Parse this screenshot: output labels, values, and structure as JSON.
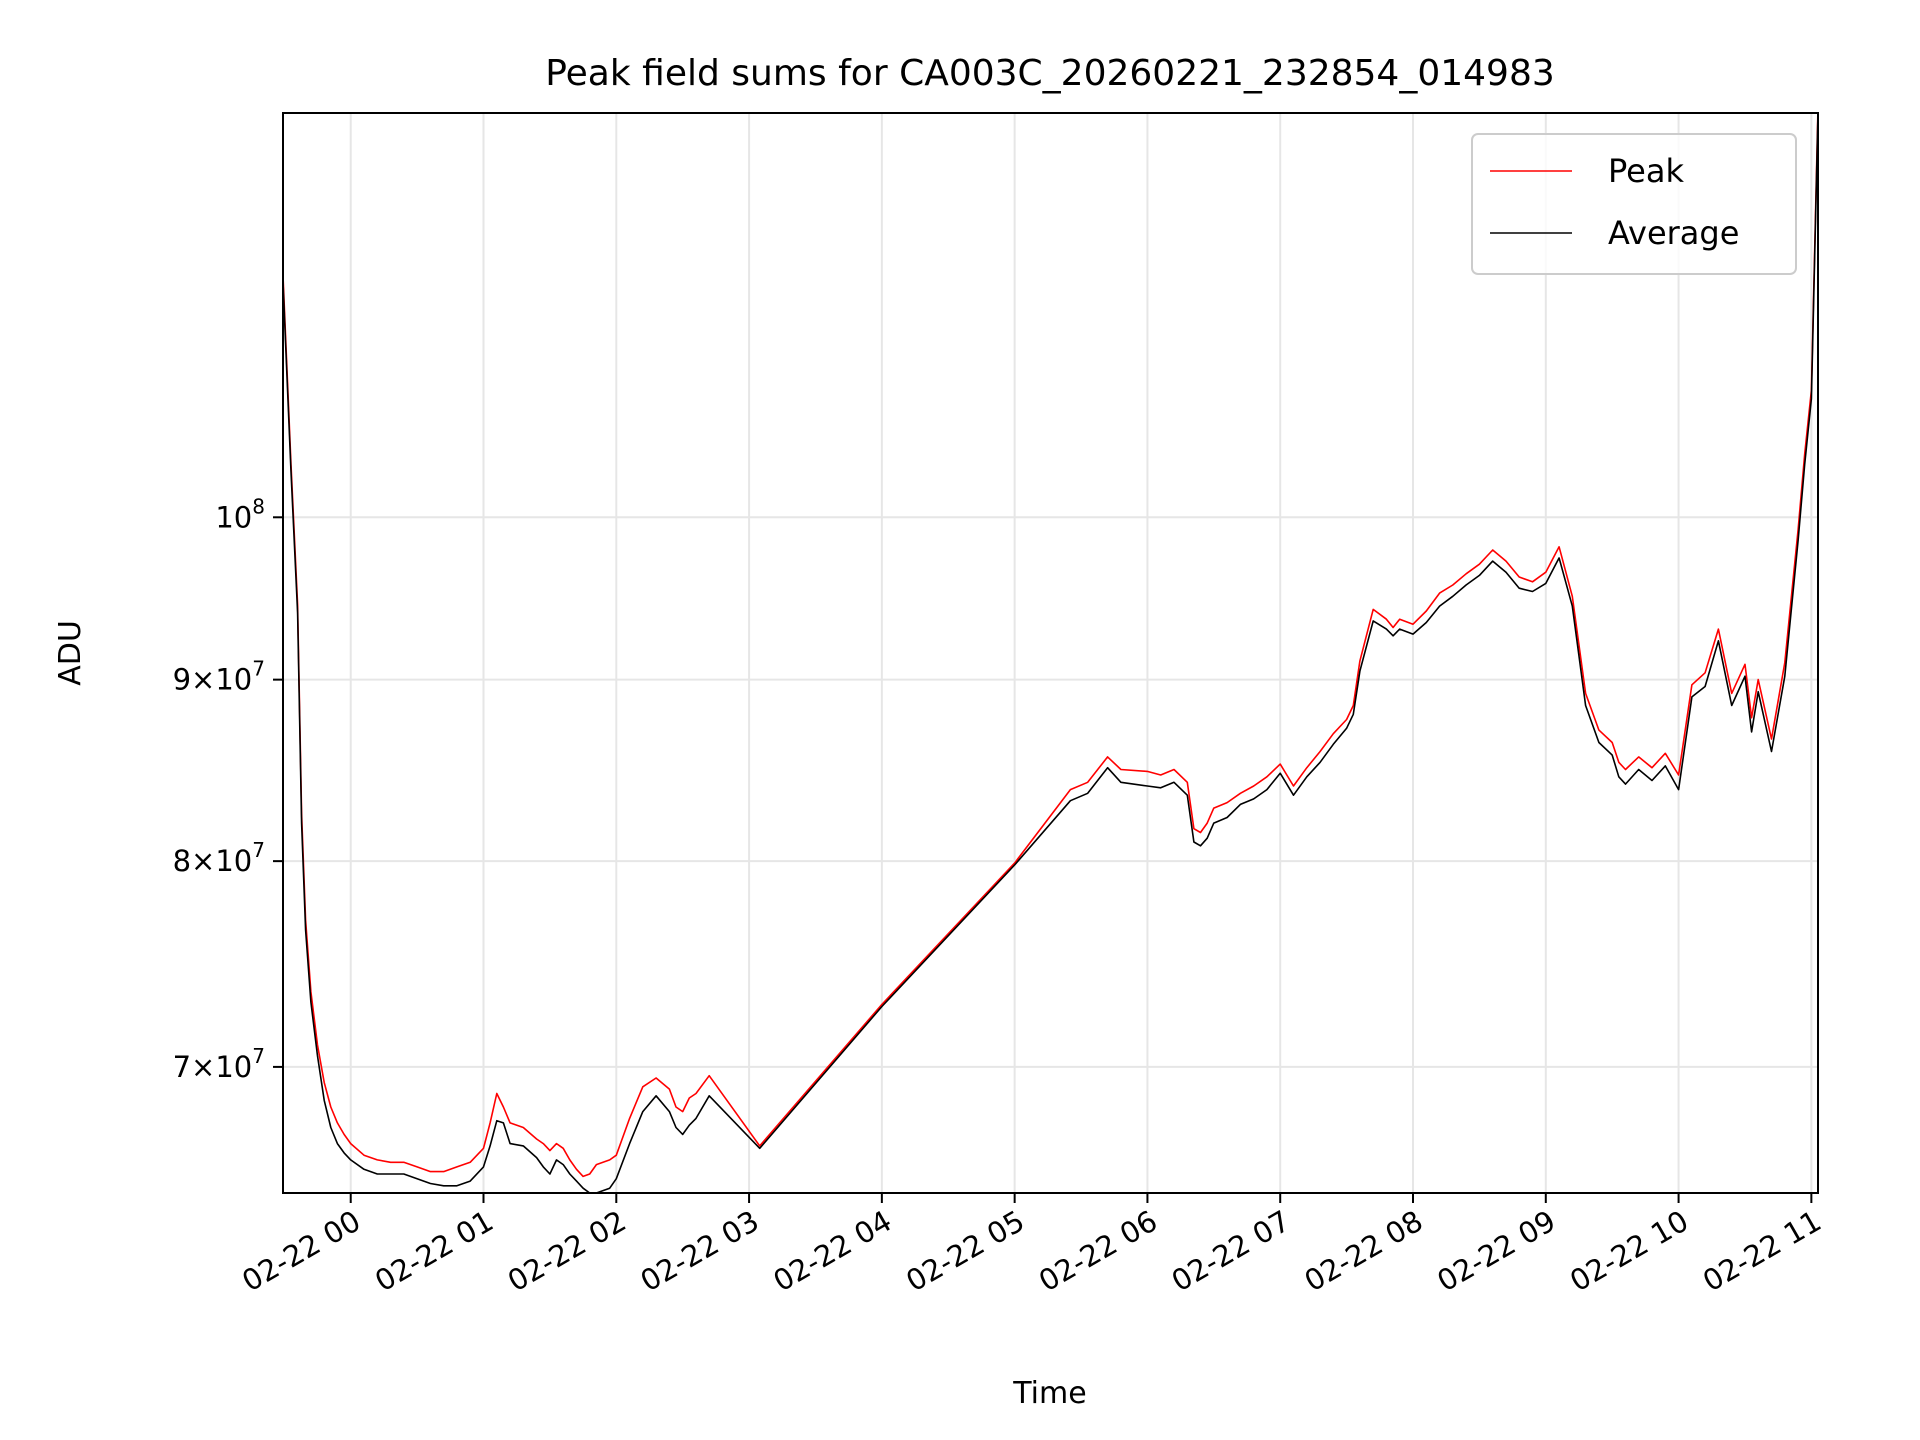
{
  "chart_data": {
    "type": "line",
    "title": "Peak field sums for CA003C_20260221_232854_014983",
    "xlabel": "Time",
    "ylabel": "ADU",
    "x_is_time": true,
    "x_unit": "hours since 2026-02-22 00:00",
    "xlim": [
      -0.51,
      11.05
    ],
    "yscale": "log",
    "ylim": [
      64500000,
      130000000
    ],
    "grid": true,
    "legend_position": "top-right",
    "x_ticks": [
      {
        "value": 0,
        "label": "02-22 00"
      },
      {
        "value": 1,
        "label": "02-22 01"
      },
      {
        "value": 2,
        "label": "02-22 02"
      },
      {
        "value": 3,
        "label": "02-22 03"
      },
      {
        "value": 4,
        "label": "02-22 04"
      },
      {
        "value": 5,
        "label": "02-22 05"
      },
      {
        "value": 6,
        "label": "02-22 06"
      },
      {
        "value": 7,
        "label": "02-22 07"
      },
      {
        "value": 8,
        "label": "02-22 08"
      },
      {
        "value": 9,
        "label": "02-22 09"
      },
      {
        "value": 10,
        "label": "02-22 10"
      },
      {
        "value": 11,
        "label": "02-22 11"
      }
    ],
    "y_ticks": [
      {
        "value": 70000000,
        "mantissa": "7",
        "base": "10",
        "exp": "7"
      },
      {
        "value": 80000000,
        "mantissa": "8",
        "base": "10",
        "exp": "7"
      },
      {
        "value": 90000000,
        "mantissa": "9",
        "base": "10",
        "exp": "7"
      },
      {
        "value": 100000000,
        "mantissa": "",
        "base": "10",
        "exp": "8"
      }
    ],
    "series": [
      {
        "name": "Average",
        "color": "#000000",
        "x": [
          -0.51,
          -0.45,
          -0.4,
          -0.37,
          -0.34,
          -0.3,
          -0.25,
          -0.2,
          -0.15,
          -0.1,
          -0.05,
          0.0,
          0.1,
          0.2,
          0.3,
          0.4,
          0.5,
          0.6,
          0.7,
          0.8,
          0.9,
          1.0,
          1.05,
          1.1,
          1.15,
          1.2,
          1.3,
          1.4,
          1.45,
          1.5,
          1.55,
          1.6,
          1.65,
          1.7,
          1.75,
          1.8,
          1.85,
          1.9,
          1.95,
          2.0,
          2.1,
          2.2,
          2.3,
          2.4,
          2.45,
          2.5,
          2.55,
          2.6,
          2.7,
          3.08,
          4.0,
          5.0,
          5.42,
          5.55,
          5.7,
          5.8,
          6.0,
          6.1,
          6.2,
          6.3,
          6.35,
          6.4,
          6.45,
          6.5,
          6.6,
          6.7,
          6.8,
          6.9,
          7.0,
          7.1,
          7.2,
          7.3,
          7.4,
          7.5,
          7.55,
          7.6,
          7.7,
          7.8,
          7.85,
          7.9,
          8.0,
          8.1,
          8.2,
          8.3,
          8.4,
          8.5,
          8.6,
          8.7,
          8.8,
          8.9,
          9.0,
          9.1,
          9.2,
          9.3,
          9.4,
          9.5,
          9.55,
          9.6,
          9.7,
          9.8,
          9.9,
          10.0,
          10.1,
          10.2,
          10.3,
          10.4,
          10.5,
          10.55,
          10.6,
          10.7,
          10.8,
          10.9,
          10.95,
          11.0,
          11.05
        ],
        "values": [
          116500000,
          103000000,
          94000000,
          82000000,
          76500000,
          73000000,
          70500000,
          68500000,
          67300000,
          66600000,
          66200000,
          65900000,
          65500000,
          65300000,
          65300000,
          65300000,
          65100000,
          64900000,
          64800000,
          64800000,
          65000000,
          65600000,
          66500000,
          67600000,
          67500000,
          66600000,
          66500000,
          66000000,
          65600000,
          65300000,
          65900000,
          65700000,
          65300000,
          65000000,
          64700000,
          64500000,
          64500000,
          64600000,
          64700000,
          65100000,
          66600000,
          68000000,
          68700000,
          68000000,
          67300000,
          67000000,
          67400000,
          67700000,
          68700000,
          66400000,
          72800000,
          79800000,
          83200000,
          83600000,
          85000000,
          84200000,
          84000000,
          83900000,
          84200000,
          83500000,
          81000000,
          80800000,
          81200000,
          82000000,
          82300000,
          83000000,
          83300000,
          83800000,
          84700000,
          83500000,
          84500000,
          85300000,
          86300000,
          87200000,
          88000000,
          90500000,
          93500000,
          93000000,
          92600000,
          93000000,
          92700000,
          93400000,
          94400000,
          95000000,
          95700000,
          96300000,
          97200000,
          96500000,
          95500000,
          95300000,
          95800000,
          97400000,
          94400000,
          88500000,
          86400000,
          85700000,
          84500000,
          84100000,
          84900000,
          84300000,
          85100000,
          83800000,
          89000000,
          89600000,
          92300000,
          88500000,
          90200000,
          87000000,
          89300000,
          85900000,
          90200000,
          98500000,
          103500000,
          108000000,
          130000000
        ]
      },
      {
        "name": "Peak",
        "color": "#ff0000",
        "x": [
          -0.51,
          -0.45,
          -0.4,
          -0.37,
          -0.34,
          -0.3,
          -0.25,
          -0.2,
          -0.15,
          -0.1,
          -0.05,
          0.0,
          0.1,
          0.2,
          0.3,
          0.4,
          0.5,
          0.6,
          0.7,
          0.8,
          0.9,
          1.0,
          1.05,
          1.1,
          1.15,
          1.2,
          1.3,
          1.4,
          1.45,
          1.5,
          1.55,
          1.6,
          1.65,
          1.7,
          1.75,
          1.8,
          1.85,
          1.9,
          1.95,
          2.0,
          2.1,
          2.2,
          2.3,
          2.4,
          2.45,
          2.5,
          2.55,
          2.6,
          2.7,
          3.08,
          4.0,
          5.0,
          5.42,
          5.55,
          5.7,
          5.8,
          6.0,
          6.1,
          6.2,
          6.3,
          6.35,
          6.4,
          6.45,
          6.5,
          6.6,
          6.7,
          6.8,
          6.9,
          7.0,
          7.1,
          7.2,
          7.3,
          7.4,
          7.5,
          7.55,
          7.6,
          7.7,
          7.8,
          7.85,
          7.9,
          8.0,
          8.1,
          8.2,
          8.3,
          8.4,
          8.5,
          8.6,
          8.7,
          8.8,
          8.9,
          9.0,
          9.1,
          9.2,
          9.3,
          9.4,
          9.5,
          9.55,
          9.6,
          9.7,
          9.8,
          9.9,
          10.0,
          10.1,
          10.2,
          10.3,
          10.4,
          10.5,
          10.55,
          10.6,
          10.7,
          10.8,
          10.9,
          10.95,
          11.0,
          11.05
        ],
        "values": [
          117000000,
          103500000,
          94500000,
          82500000,
          77000000,
          73500000,
          71000000,
          69300000,
          68200000,
          67500000,
          67000000,
          66600000,
          66100000,
          65900000,
          65800000,
          65800000,
          65600000,
          65400000,
          65400000,
          65600000,
          65800000,
          66400000,
          67500000,
          68800000,
          68200000,
          67500000,
          67300000,
          66800000,
          66600000,
          66300000,
          66600000,
          66400000,
          65900000,
          65500000,
          65200000,
          65300000,
          65700000,
          65800000,
          65900000,
          66100000,
          67700000,
          69100000,
          69500000,
          69000000,
          68200000,
          68000000,
          68600000,
          68800000,
          69600000,
          66500000,
          72900000,
          79900000,
          83800000,
          84200000,
          85600000,
          84900000,
          84800000,
          84600000,
          84900000,
          84200000,
          81700000,
          81500000,
          82000000,
          82800000,
          83100000,
          83600000,
          84000000,
          84500000,
          85200000,
          84000000,
          85000000,
          85900000,
          86900000,
          87700000,
          88500000,
          91100000,
          94200000,
          93600000,
          93100000,
          93600000,
          93300000,
          94100000,
          95200000,
          95700000,
          96400000,
          97000000,
          97900000,
          97200000,
          96200000,
          95900000,
          96500000,
          98100000,
          95000000,
          89200000,
          87100000,
          86400000,
          85300000,
          84900000,
          85600000,
          85000000,
          85800000,
          84600000,
          89700000,
          90400000,
          93000000,
          89200000,
          90900000,
          87800000,
          90000000,
          86600000,
          91000000,
          99200000,
          104200000,
          108600000,
          130500000
        ]
      }
    ]
  }
}
